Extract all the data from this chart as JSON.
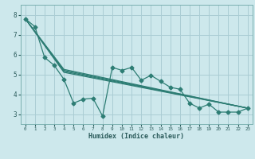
{
  "xlabel": "Humidex (Indice chaleur)",
  "bg_color": "#cde8ec",
  "line_color": "#2d7d74",
  "grid_color": "#aacdd4",
  "xlim": [
    -0.5,
    23.5
  ],
  "ylim": [
    2.5,
    8.5
  ],
  "yticks": [
    3,
    4,
    5,
    6,
    7,
    8
  ],
  "xticks": [
    0,
    1,
    2,
    3,
    4,
    5,
    6,
    7,
    8,
    9,
    10,
    11,
    12,
    13,
    14,
    15,
    16,
    17,
    18,
    19,
    20,
    21,
    22,
    23
  ],
  "jagged": {
    "x": [
      0,
      1,
      2,
      3,
      4,
      5,
      6,
      7,
      8,
      9,
      10,
      11,
      12,
      13,
      14,
      15,
      16,
      17,
      18,
      19,
      20,
      21,
      22,
      23
    ],
    "y": [
      7.8,
      7.4,
      5.85,
      5.45,
      4.75,
      3.55,
      3.75,
      3.8,
      2.9,
      5.35,
      5.2,
      5.35,
      4.7,
      4.95,
      4.65,
      4.35,
      4.25,
      3.55,
      3.3,
      3.5,
      3.1,
      3.1,
      3.1,
      3.3
    ]
  },
  "trend_lines": [
    {
      "x": [
        0,
        4,
        23
      ],
      "y": [
        7.8,
        5.25,
        3.3
      ]
    },
    {
      "x": [
        0,
        4,
        23
      ],
      "y": [
        7.8,
        5.2,
        3.3
      ]
    },
    {
      "x": [
        0,
        4,
        23
      ],
      "y": [
        7.8,
        5.15,
        3.3
      ]
    },
    {
      "x": [
        0,
        4,
        23
      ],
      "y": [
        7.8,
        5.1,
        3.3
      ]
    }
  ]
}
